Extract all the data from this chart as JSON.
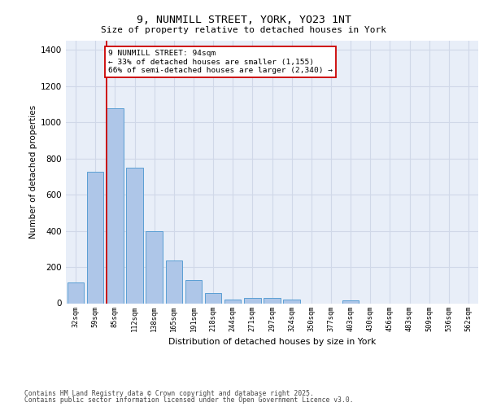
{
  "title_line1": "9, NUNMILL STREET, YORK, YO23 1NT",
  "title_line2": "Size of property relative to detached houses in York",
  "xlabel": "Distribution of detached houses by size in York",
  "ylabel": "Number of detached properties",
  "categories": [
    "32sqm",
    "59sqm",
    "85sqm",
    "112sqm",
    "138sqm",
    "165sqm",
    "191sqm",
    "218sqm",
    "244sqm",
    "271sqm",
    "297sqm",
    "324sqm",
    "350sqm",
    "377sqm",
    "403sqm",
    "430sqm",
    "456sqm",
    "483sqm",
    "509sqm",
    "536sqm",
    "562sqm"
  ],
  "values": [
    115,
    728,
    1075,
    750,
    400,
    238,
    128,
    55,
    18,
    30,
    28,
    18,
    0,
    0,
    15,
    0,
    0,
    0,
    0,
    0,
    0
  ],
  "bar_color": "#aec6e8",
  "bar_edge_color": "#5a9fd4",
  "grid_color": "#d0d8e8",
  "background_color": "#e8eef8",
  "vline_color": "#cc0000",
  "annotation_text": "9 NUNMILL STREET: 94sqm\n← 33% of detached houses are smaller (1,155)\n66% of semi-detached houses are larger (2,340) →",
  "annotation_box_color": "#ffffff",
  "annotation_box_edge": "#cc0000",
  "footer_line1": "Contains HM Land Registry data © Crown copyright and database right 2025.",
  "footer_line2": "Contains public sector information licensed under the Open Government Licence v3.0.",
  "ylim": [
    0,
    1450
  ],
  "yticks": [
    0,
    200,
    400,
    600,
    800,
    1000,
    1200,
    1400
  ]
}
